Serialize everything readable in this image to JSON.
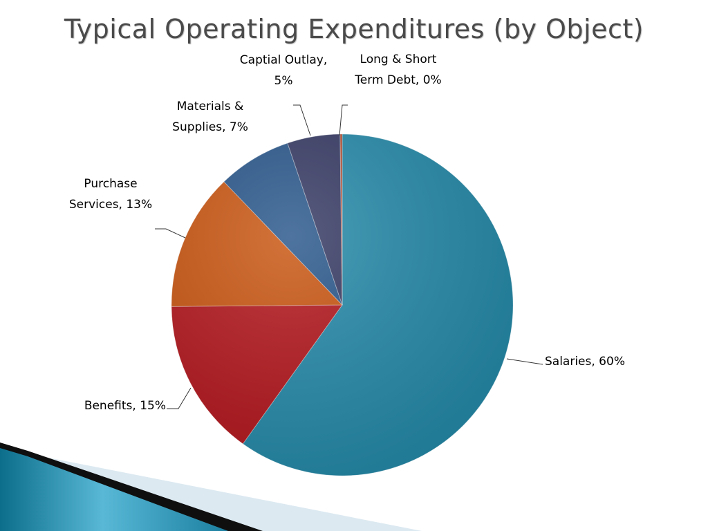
{
  "slide": {
    "title": "Typical Operating Expenditures (by Object)"
  },
  "chart_data": {
    "type": "pie",
    "title": "Typical Operating Expenditures (by Object)",
    "slices": [
      {
        "name": "Salaries",
        "value": 60,
        "label_lines": [
          "Salaries, 60%"
        ],
        "color": "#2389a8"
      },
      {
        "name": "Benefits",
        "value": 15,
        "label_lines": [
          "Benefits, 15%"
        ],
        "color": "#b3151b"
      },
      {
        "name": "Purchase Services",
        "value": 13,
        "label_lines": [
          "Purchase",
          "Services, 13%"
        ],
        "color": "#c9540f"
      },
      {
        "name": "Materials & Supplies",
        "value": 7,
        "label_lines": [
          "Materials &",
          "Supplies, 7%"
        ],
        "color": "#27558a"
      },
      {
        "name": "Captial Outlay",
        "value": 5,
        "label_lines": [
          "Captial Outlay,",
          "5%"
        ],
        "color": "#343862"
      },
      {
        "name": "Long & Short Term Debt",
        "value": 0.2,
        "label_lines": [
          "Long & Short",
          "Term Debt, 0%"
        ],
        "color": "#b14a2e"
      }
    ],
    "start": "12 o'clock",
    "direction": "clockwise"
  }
}
